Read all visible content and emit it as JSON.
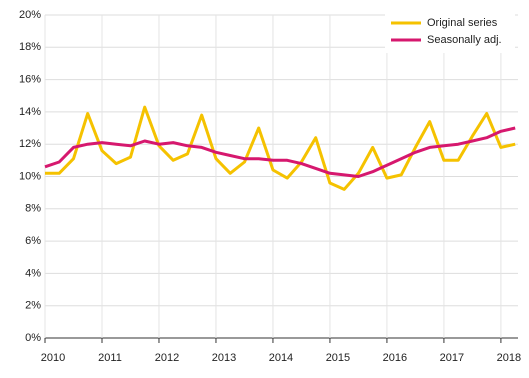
{
  "chart_data": {
    "type": "line",
    "x": [
      2010,
      2010.25,
      2010.5,
      2010.75,
      2011,
      2011.25,
      2011.5,
      2011.75,
      2012,
      2012.25,
      2012.5,
      2012.75,
      2013,
      2013.25,
      2013.5,
      2013.75,
      2014,
      2014.25,
      2014.5,
      2014.75,
      2015,
      2015.25,
      2015.5,
      2015.75,
      2016,
      2016.25,
      2016.5,
      2016.75,
      2017,
      2017.25,
      2017.5,
      2017.75,
      2018,
      2018.25
    ],
    "series": [
      {
        "name": "Original series",
        "color": "#f5c200",
        "values": [
          10.2,
          10.2,
          11.1,
          13.9,
          11.6,
          10.8,
          11.2,
          14.3,
          11.9,
          11.0,
          11.4,
          13.8,
          11.1,
          10.2,
          10.9,
          13.0,
          10.4,
          9.9,
          10.9,
          12.4,
          9.6,
          9.2,
          10.2,
          11.8,
          9.9,
          10.1,
          11.8,
          13.4,
          11.0,
          11.0,
          12.5,
          13.9,
          11.8,
          12.0
        ]
      },
      {
        "name": "Seasonally adj.",
        "color": "#d6186e",
        "values": [
          10.6,
          10.9,
          11.8,
          12.0,
          12.1,
          12.0,
          11.9,
          12.2,
          12.0,
          12.1,
          11.9,
          11.8,
          11.5,
          11.3,
          11.1,
          11.1,
          11.0,
          11.0,
          10.8,
          10.5,
          10.2,
          10.1,
          10.0,
          10.3,
          10.7,
          11.1,
          11.5,
          11.8,
          11.9,
          12.0,
          12.2,
          12.4,
          12.8,
          13.0
        ]
      }
    ],
    "xlim": [
      2010,
      2018.3
    ],
    "xticks": [
      2010,
      2011,
      2012,
      2013,
      2014,
      2015,
      2016,
      2017,
      2018
    ],
    "ylim": [
      0,
      20
    ],
    "yticks": [
      {
        "value": 0,
        "label": "0%"
      },
      {
        "value": 2,
        "label": "2%"
      },
      {
        "value": 4,
        "label": "4%"
      },
      {
        "value": 6,
        "label": "6%"
      },
      {
        "value": 8,
        "label": "8%"
      },
      {
        "value": 10,
        "label": "10%"
      },
      {
        "value": 12,
        "label": "12%"
      },
      {
        "value": 14,
        "label": "14%"
      },
      {
        "value": 16,
        "label": "16%"
      },
      {
        "value": 18,
        "label": "18%"
      },
      {
        "value": 20,
        "label": "20%"
      }
    ],
    "grid": true,
    "legend": "top-right"
  }
}
